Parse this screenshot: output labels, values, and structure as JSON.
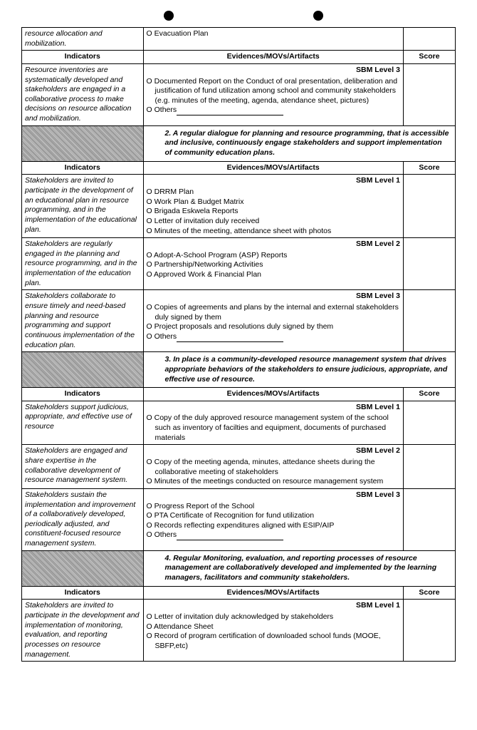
{
  "headers": {
    "indicators": "Indicators",
    "evidences": "Evidences/MOVs/Artifacts",
    "score": "Score"
  },
  "levels": {
    "l1": "SBM Level 1",
    "l2": "SBM Level 2",
    "l3": "SBM Level 3"
  },
  "row0": {
    "ind": "resource allocation and mobilization.",
    "ev1": "Evacuation Plan"
  },
  "row1": {
    "ind": "Resource inventories are systematically developed and stakeholders are engaged in a collaborative process to make decisions on resource allocation and mobilization.",
    "ev1": "Documented Report on the Conduct of oral presentation, deliberation and justification of fund utilization among school and community stakeholders (e.g. minutes of the meeting, agenda, atendance sheet, pictures)",
    "ev2": "Others"
  },
  "crit2": "2.  A regular dialogue for planning and resource programming, that is accessible and inclusive, continuously engage stakeholders and support implementation of community education plans.",
  "row2a": {
    "ind": "Stakeholders are invited to participate in the development of an educational plan in resource programming, and in the implementation of the educational plan.",
    "ev1": "DRRM Plan",
    "ev2": "Work Plan & Budget Matrix",
    "ev3": "Brigada Eskwela Reports",
    "ev4": "Letter of invitation duly received",
    "ev5": "Minutes of the meeting, attendance sheet with photos"
  },
  "row2b": {
    "ind": "Stakeholders are regularly engaged in the planning and resource programming, and in the implementation of the education plan.",
    "ev1": "Adopt-A-School Program (ASP) Reports",
    "ev2": "Partnership/Networking Activities",
    "ev3": "Approved Work & Financial Plan"
  },
  "row2c": {
    "ind": "Stakeholders collaborate to ensure timely and need-based planning and resource programming and support continuous implementation of the education plan.",
    "ev1": "Copies of agreements and plans by the internal and external stakeholders duly signed by them",
    "ev2": "Project proposals and resolutions duly signed by them",
    "ev3": "Others"
  },
  "crit3": "3.  In place is a community-developed resource management system that drives appropriate behaviors of the stakeholders to ensure judicious, appropriate, and effective use of resource.",
  "row3a": {
    "ind": "Stakeholders support judicious, appropriate, and effective use of resource",
    "ev1": "Copy of the duly approved resource management system of the school such as inventory of facilties and equipment, documents of purchased materials"
  },
  "row3b": {
    "ind": "Stakeholders are engaged and share expertise in the collaborative development of resource management system.",
    "ev1": "Copy of the meeting agenda, minutes, attedance sheets during the collaborative meeting of stakeholders",
    "ev2": "Minutes of the meetings conducted on resource management system"
  },
  "row3c": {
    "ind": "Stakeholders sustain the implementation and improvement of a collaboratively developed, periodically adjusted, and constituent-focused resource management system.",
    "ev1": "Progress Report of the School",
    "ev2": "PTA Certificate of Recognition for fund utilization",
    "ev3": "Records reflecting expenditures aligned with ESIP/AIP",
    "ev4": "Others"
  },
  "crit4": "4.  Regular Monitoring, evaluation, and reporting processes of resource management are collaboratively developed and implemented by the learning managers, facilitators and community stakeholders.",
  "row4a": {
    "ind": "Stakeholders are invited to participate in the development and implementation of monitoring, evaluation, and reporting processes on resource management.",
    "ev1": "Letter of invitation duly acknowledged by stakeholders",
    "ev2": "Attendance Sheet",
    "ev3": "Record of program certification of downloaded school funds (MOOE, SBFP,etc)"
  }
}
